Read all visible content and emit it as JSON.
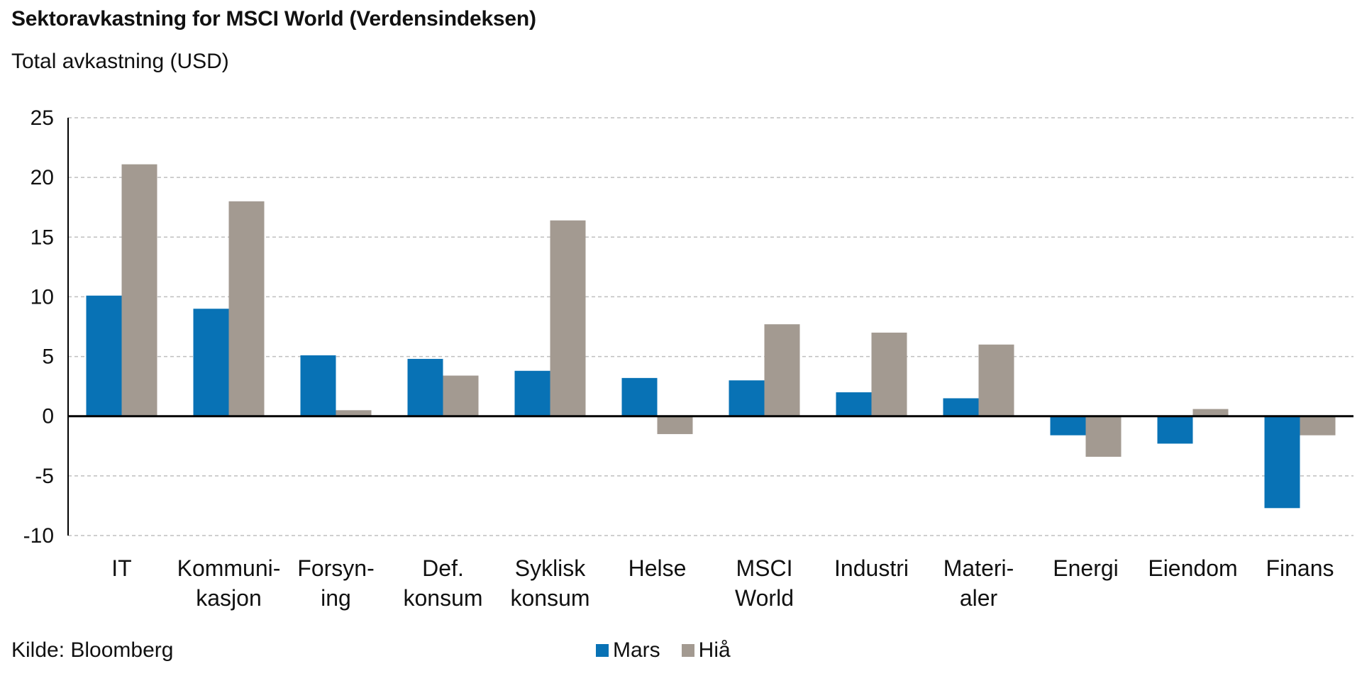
{
  "title": "Sektoravkastning for MSCI World (Verdensindeksen)",
  "subtitle": "Total avkastning (USD)",
  "source": "Kilde: Bloomberg",
  "colors": {
    "mars": "#0872b5",
    "hia": "#a39a91",
    "grid": "#bfbfbf",
    "axis": "#000000"
  },
  "chart_data": {
    "type": "bar",
    "categories": [
      [
        "IT"
      ],
      [
        "Kommuni-",
        "kasjon"
      ],
      [
        "Forsyn-",
        "ing"
      ],
      [
        "Def.",
        "konsum"
      ],
      [
        "Syklisk",
        "konsum"
      ],
      [
        "Helse"
      ],
      [
        "MSCI",
        "World"
      ],
      [
        "Industri"
      ],
      [
        "Materi-",
        "aler"
      ],
      [
        "Energi"
      ],
      [
        "Eiendom"
      ],
      [
        "Finans"
      ]
    ],
    "series": [
      {
        "name": "Mars",
        "values": [
          10.1,
          9.0,
          5.1,
          4.8,
          3.8,
          3.2,
          3.0,
          2.0,
          1.5,
          -1.6,
          -2.3,
          -7.7
        ]
      },
      {
        "name": "Hiå",
        "values": [
          21.1,
          18.0,
          0.5,
          3.4,
          16.4,
          -1.5,
          7.7,
          7.0,
          6.0,
          -3.4,
          0.6,
          -1.6
        ]
      }
    ],
    "ylim": [
      -10,
      25
    ],
    "yticks": [
      25,
      20,
      15,
      10,
      5,
      0,
      -5,
      -10
    ],
    "grid": true,
    "legend": "bottom-center"
  }
}
